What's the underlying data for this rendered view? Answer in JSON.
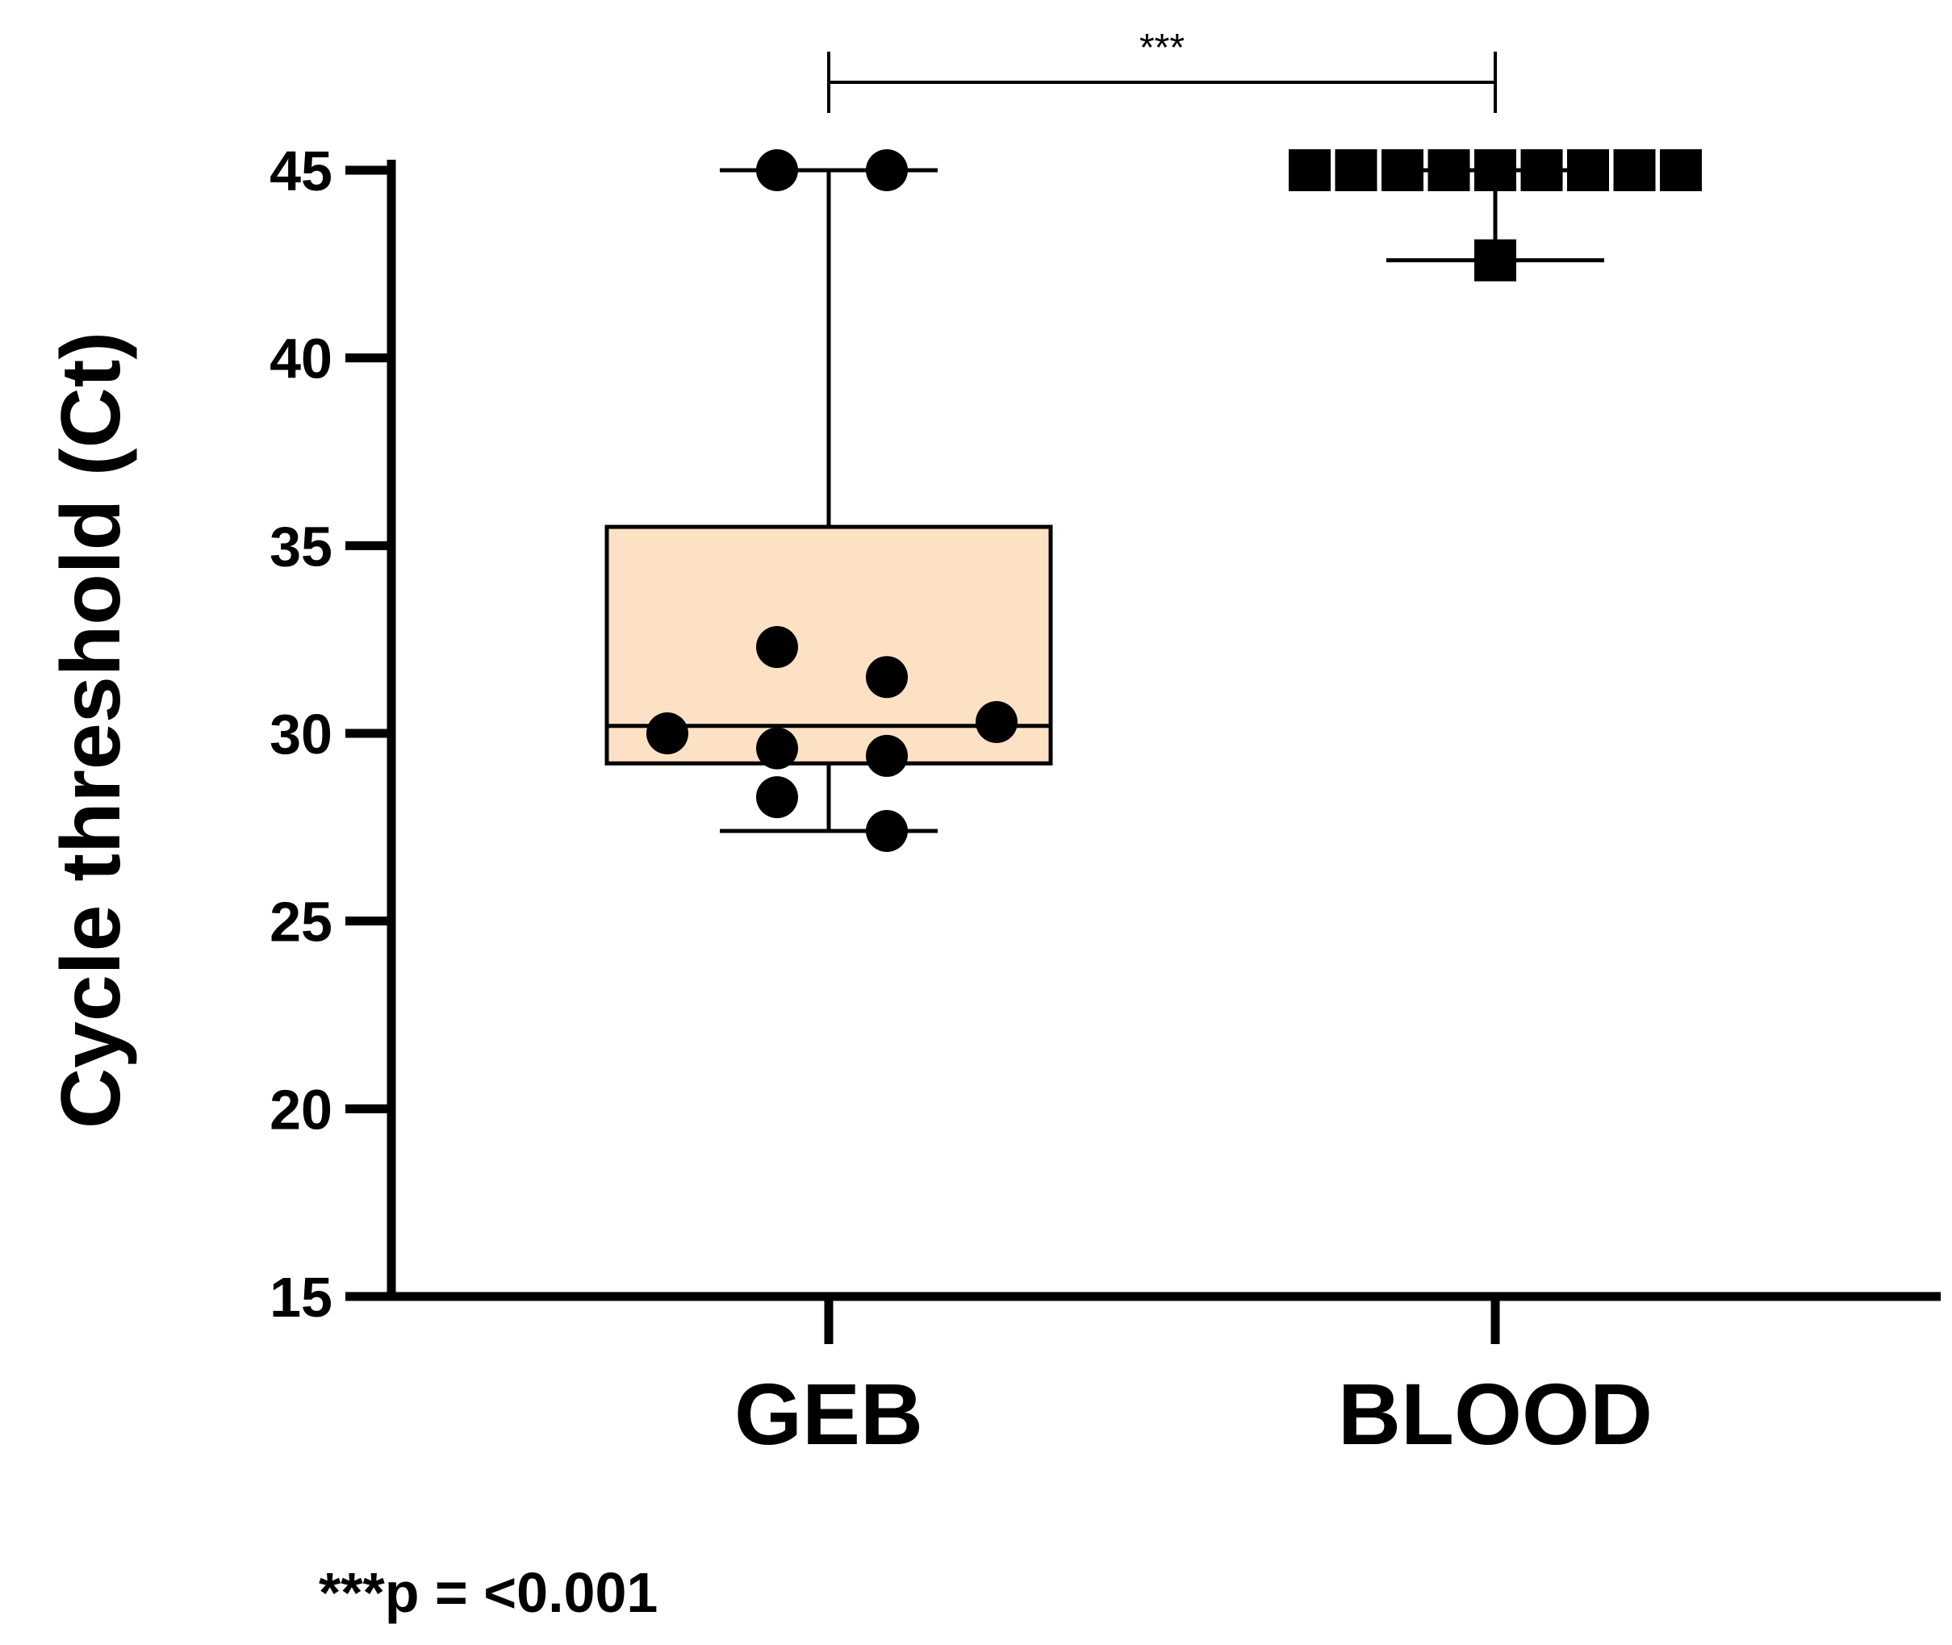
{
  "chart_data": {
    "type": "box",
    "ylabel": "Cycle threshold (Ct)",
    "xlabel": "",
    "ylim": [
      15,
      45
    ],
    "yticks": [
      "15",
      "20",
      "25",
      "30",
      "35",
      "40",
      "45"
    ],
    "categories": [
      "GEB",
      "BLOOD"
    ],
    "groups": [
      {
        "name": "GEB",
        "marker": "circle",
        "fill": "#fde1c4",
        "box": {
          "min": 27.4,
          "q1": 29.2,
          "median": 30.2,
          "q3": 35.5,
          "max": 45
        },
        "points": [
          45,
          45,
          32.3,
          31.5,
          30.0,
          30.3,
          29.6,
          29.4,
          28.3,
          27.4
        ]
      },
      {
        "name": "BLOOD",
        "marker": "square",
        "fill": "#000000",
        "box": {
          "min": 42.6,
          "q1": 45,
          "median": 45,
          "q3": 45,
          "max": 45
        },
        "points": [
          45,
          45,
          45,
          45,
          45,
          45,
          45,
          45,
          45,
          42.6
        ]
      }
    ],
    "significance": {
      "between": [
        "GEB",
        "BLOOD"
      ],
      "label": "***"
    },
    "footnote": "***p = <0.001",
    "grid": false,
    "legend": "none"
  }
}
